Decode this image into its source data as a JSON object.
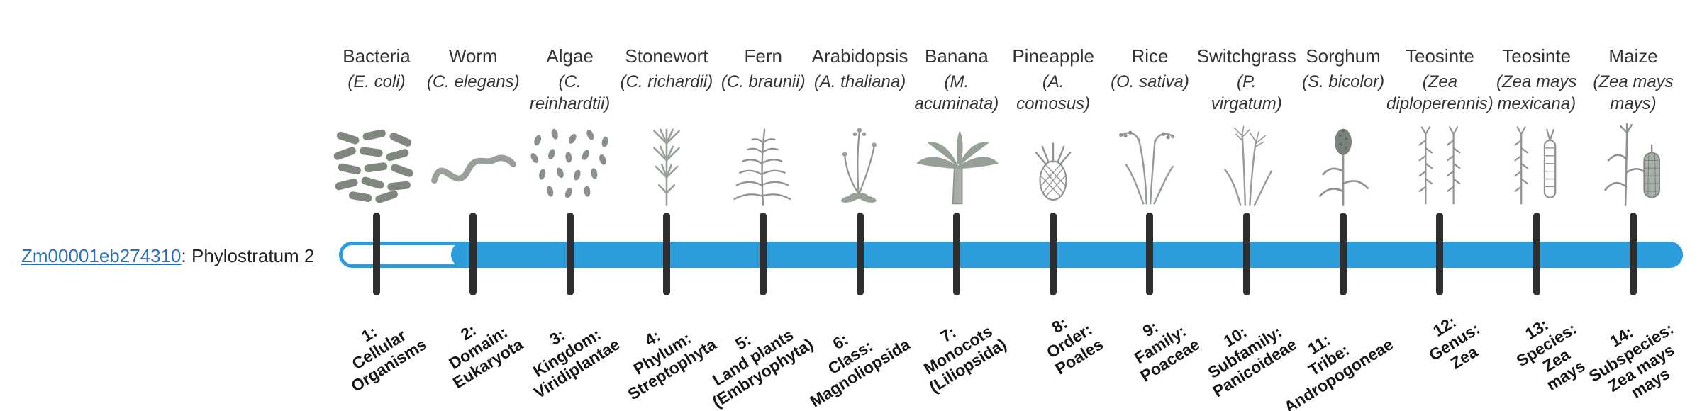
{
  "gene": {
    "id": "Zm00001eb274310",
    "suffix": ": Phylostratum 2"
  },
  "colors": {
    "bar": "#2D9CDB",
    "tick": "#2e2e2e",
    "link": "#2a6ebb",
    "text": "#333333"
  },
  "organisms": [
    {
      "common_name": "Bacteria",
      "scientific_name": "(E. coli)",
      "icon": "bacteria-illustration",
      "phylostratum_label": "1:\nCellular\nOrganisms"
    },
    {
      "common_name": "Worm",
      "scientific_name": "(C. elegans)",
      "icon": "worm-illustration",
      "phylostratum_label": "2:\nDomain:\nEukaryota"
    },
    {
      "common_name": "Algae",
      "scientific_name": "(C.\nreinhardtii)",
      "icon": "algae-illustration",
      "phylostratum_label": "3:\nKingdom:\nViridiplantae"
    },
    {
      "common_name": "Stonewort",
      "scientific_name": "(C. richardii)",
      "icon": "stonewort-illustration",
      "phylostratum_label": "4:\nPhylum:\nStreptophyta"
    },
    {
      "common_name": "Fern",
      "scientific_name": "(C. braunii)",
      "icon": "fern-illustration",
      "phylostratum_label": "5:\nLand plants\n(Embryophyta)"
    },
    {
      "common_name": "Arabidopsis",
      "scientific_name": "(A. thaliana)",
      "icon": "arabidopsis-illustration",
      "phylostratum_label": "6:\nClass:\nMagnoliopsida"
    },
    {
      "common_name": "Banana",
      "scientific_name": "(M.\nacuminata)",
      "icon": "banana-illustration",
      "phylostratum_label": "7:\nMonocots\n(Liliopsida)"
    },
    {
      "common_name": "Pineapple",
      "scientific_name": "(A.\ncomosus)",
      "icon": "pineapple-illustration",
      "phylostratum_label": "8:\nOrder:\nPoales"
    },
    {
      "common_name": "Rice",
      "scientific_name": "(O. sativa)",
      "icon": "rice-illustration",
      "phylostratum_label": "9:\nFamily:\nPoaceae"
    },
    {
      "common_name": "Switchgrass",
      "scientific_name": "(P.\nvirgatum)",
      "icon": "switchgrass-illustration",
      "phylostratum_label": "10:\nSubfamily:\nPanicoideae"
    },
    {
      "common_name": "Sorghum",
      "scientific_name": "(S. bicolor)",
      "icon": "sorghum-illustration",
      "phylostratum_label": "11:\nTribe:\nAndropogoneae"
    },
    {
      "common_name": "Teosinte",
      "scientific_name": "(Zea\ndiploperennis)",
      "icon": "teosinte-diploperennis-illustration",
      "phylostratum_label": "12:\nGenus:\nZea"
    },
    {
      "common_name": "Teosinte",
      "scientific_name": "(Zea mays\nmexicana)",
      "icon": "teosinte-mexicana-illustration",
      "phylostratum_label": "13:\nSpecies:\nZea\nmays"
    },
    {
      "common_name": "Maize",
      "scientific_name": "(Zea mays\nmays)",
      "icon": "maize-illustration",
      "phylostratum_label": "14:\nSubspecies:\nZea mays\nmays"
    }
  ]
}
